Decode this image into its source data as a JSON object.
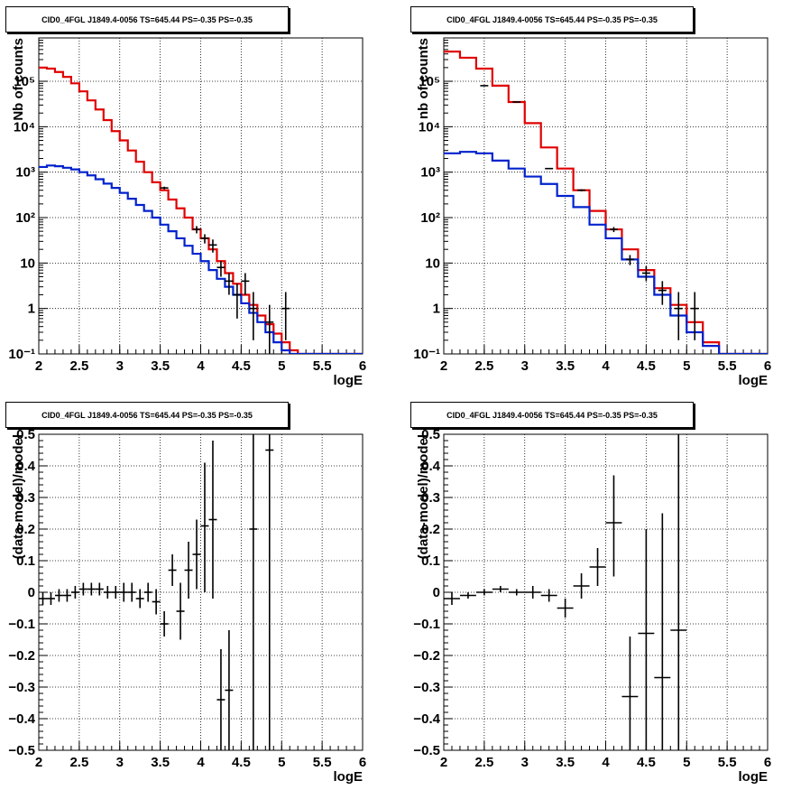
{
  "colors": {
    "data": "#000000",
    "model_total": "#e00000",
    "model_component": "#0022cc",
    "grid": "#000000"
  },
  "chart_data": [
    {
      "type": "line",
      "title": "CID0_4FGL J1849.4-0056 TS=645.44 PS=-0.35 PS=-0.35",
      "xlabel": "logE",
      "ylabel": "Nb of counts",
      "xlim": [
        2,
        6
      ],
      "ylim": [
        0.1,
        900000
      ],
      "yscale": "log",
      "xticks": [
        "2",
        "2.5",
        "3",
        "3.5",
        "4",
        "4.5",
        "5",
        "5.5",
        "6"
      ],
      "yticks": [
        "10⁻¹",
        "1",
        "10",
        "10²",
        "10³",
        "10⁴",
        "10⁵"
      ],
      "grid": true,
      "series": [
        {
          "kind": "step",
          "color": "model_total",
          "edges": [
            2.0,
            2.1,
            2.2,
            2.3,
            2.4,
            2.5,
            2.6,
            2.7,
            2.8,
            2.9,
            3.0,
            3.1,
            3.2,
            3.3,
            3.4,
            3.5,
            3.6,
            3.7,
            3.8,
            3.9,
            4.0,
            4.1,
            4.2,
            4.3,
            4.4,
            4.5,
            4.6,
            4.7,
            4.8,
            4.9,
            5.0,
            5.1,
            5.2,
            5.3,
            5.4,
            5.5,
            5.6,
            5.7,
            5.8,
            5.9,
            6.0
          ],
          "values": [
            200000,
            190000,
            160000,
            125000,
            90000,
            60000,
            38000,
            24000,
            14000,
            8000,
            5000,
            3000,
            1700,
            1000,
            600,
            400,
            250,
            160,
            100,
            55,
            35,
            20,
            11,
            6,
            3.5,
            2.0,
            1.2,
            0.7,
            0.45,
            0.28,
            0.18,
            0.12,
            0.1,
            0.1,
            0.1,
            0.1,
            0.1,
            0.1,
            0.1,
            0.1
          ]
        },
        {
          "kind": "step",
          "color": "model_component",
          "edges": [
            2.0,
            2.1,
            2.2,
            2.3,
            2.4,
            2.5,
            2.6,
            2.7,
            2.8,
            2.9,
            3.0,
            3.1,
            3.2,
            3.3,
            3.4,
            3.5,
            3.6,
            3.7,
            3.8,
            3.9,
            4.0,
            4.1,
            4.2,
            4.3,
            4.4,
            4.5,
            4.6,
            4.7,
            4.8,
            4.9,
            5.0,
            5.1,
            5.2,
            5.3,
            5.4,
            5.5,
            5.6,
            5.7,
            5.8,
            5.9,
            6.0
          ],
          "values": [
            1300,
            1400,
            1350,
            1250,
            1150,
            1000,
            850,
            700,
            560,
            450,
            350,
            260,
            190,
            140,
            100,
            70,
            50,
            35,
            24,
            16,
            11,
            7,
            4.5,
            3.0,
            2.0,
            1.3,
            0.8,
            0.5,
            0.3,
            0.18,
            0.12,
            0.1,
            0.1,
            0.1,
            0.1,
            0.1,
            0.1,
            0.1,
            0.1,
            0.1
          ]
        },
        {
          "kind": "points",
          "color": "data",
          "x": [
            3.55,
            3.95,
            4.05,
            4.15,
            4.25,
            4.35,
            4.45,
            4.55,
            4.65,
            4.85,
            5.05
          ],
          "y": [
            450,
            55,
            35,
            25,
            8,
            4,
            2,
            4,
            1,
            0.5,
            1
          ],
          "ylow": [
            420,
            45,
            27,
            17,
            5,
            2,
            0.6,
            2,
            0.2,
            0.1,
            0.2
          ],
          "yhigh": [
            480,
            65,
            43,
            33,
            11,
            6,
            3.5,
            6,
            2.3,
            1.2,
            2.3
          ]
        }
      ]
    },
    {
      "type": "line",
      "title": "CID0_4FGL J1849.4-0056 TS=645.44 PS=-0.35 PS=-0.35",
      "xlabel": "logE",
      "ylabel": "nb of counts",
      "xlim": [
        2,
        6
      ],
      "ylim": [
        0.1,
        900000
      ],
      "yscale": "log",
      "xticks": [
        "2",
        "2.5",
        "3",
        "3.5",
        "4",
        "4.5",
        "5",
        "5.5",
        "6"
      ],
      "yticks": [
        "10⁻¹",
        "1",
        "10",
        "10²",
        "10³",
        "10⁴",
        "10⁵"
      ],
      "grid": true,
      "series": [
        {
          "kind": "step",
          "color": "model_total",
          "edges": [
            2.0,
            2.2,
            2.4,
            2.6,
            2.8,
            3.0,
            3.2,
            3.4,
            3.6,
            3.8,
            4.0,
            4.2,
            4.4,
            4.6,
            4.8,
            5.0,
            5.2,
            5.4,
            5.6,
            5.8,
            6.0
          ],
          "values": [
            450000,
            330000,
            190000,
            80000,
            35000,
            12000,
            3500,
            1200,
            400,
            140,
            55,
            20,
            7,
            2.8,
            1.2,
            0.5,
            0.18,
            0.1,
            0.1,
            0.1
          ]
        },
        {
          "kind": "step",
          "color": "model_component",
          "edges": [
            2.0,
            2.2,
            2.4,
            2.6,
            2.8,
            3.0,
            3.2,
            3.4,
            3.6,
            3.8,
            4.0,
            4.2,
            4.4,
            4.6,
            4.8,
            5.0,
            5.2,
            5.4,
            5.6,
            5.8,
            6.0
          ],
          "values": [
            2600,
            2800,
            2600,
            1800,
            1200,
            800,
            550,
            300,
            170,
            70,
            35,
            12,
            5,
            2.0,
            0.7,
            0.3,
            0.15,
            0.1,
            0.1,
            0.1
          ]
        },
        {
          "kind": "points",
          "color": "data",
          "x": [
            2.5,
            2.9,
            3.3,
            3.7,
            4.1,
            4.3,
            4.5,
            4.7,
            4.9,
            5.1
          ],
          "y": [
            80000,
            35000,
            1200,
            400,
            55,
            12,
            6,
            2.5,
            1,
            1
          ],
          "ylow": [
            79500,
            34700,
            1170,
            380,
            48,
            9,
            4,
            1.2,
            0.2,
            0.2
          ],
          "yhigh": [
            80500,
            35300,
            1230,
            420,
            62,
            15,
            8.5,
            4,
            2.3,
            2.3
          ]
        }
      ]
    },
    {
      "type": "scatter",
      "title": "CID0_4FGL J1849.4-0056 TS=645.44 PS=-0.35 PS=-0.35",
      "xlabel": "logE",
      "ylabel": "(data-model)/model",
      "xlim": [
        2,
        6
      ],
      "ylim": [
        -0.5,
        0.5
      ],
      "yscale": "linear",
      "xticks": [
        "2",
        "2.5",
        "3",
        "3.5",
        "4",
        "4.5",
        "5",
        "5.5",
        "6"
      ],
      "yticks": [
        "−0.5",
        "−0.4",
        "−0.3",
        "−0.2",
        "−0.1",
        "0",
        "0.1",
        "0.2",
        "0.3",
        "0.4",
        "0.5"
      ],
      "grid": true,
      "series": [
        {
          "kind": "points",
          "color": "data",
          "xerr": 0.05,
          "x": [
            2.05,
            2.15,
            2.25,
            2.35,
            2.45,
            2.55,
            2.65,
            2.75,
            2.85,
            2.95,
            3.05,
            3.15,
            3.25,
            3.35,
            3.45,
            3.55,
            3.65,
            3.75,
            3.85,
            3.95,
            4.05,
            4.15,
            4.25,
            4.35,
            4.65,
            4.85
          ],
          "y": [
            -0.02,
            -0.02,
            -0.01,
            -0.01,
            0.0,
            0.01,
            0.01,
            0.01,
            0.0,
            0.0,
            0.0,
            0.0,
            -0.02,
            0.0,
            -0.03,
            -0.1,
            0.07,
            -0.06,
            0.07,
            0.12,
            0.21,
            0.23,
            -0.34,
            -0.31,
            0.2,
            0.45
          ],
          "ylow": [
            -0.04,
            -0.04,
            -0.03,
            -0.03,
            -0.02,
            -0.01,
            -0.01,
            -0.01,
            -0.02,
            -0.02,
            -0.03,
            -0.03,
            -0.05,
            -0.03,
            -0.07,
            -0.14,
            0.02,
            -0.15,
            -0.02,
            0.01,
            0.0,
            -0.02,
            -0.5,
            -0.5,
            -0.5,
            -0.5
          ],
          "yhigh": [
            0.0,
            0.0,
            0.01,
            0.01,
            0.02,
            0.03,
            0.03,
            0.03,
            0.02,
            0.02,
            0.03,
            0.03,
            0.01,
            0.03,
            0.01,
            -0.06,
            0.12,
            0.03,
            0.16,
            0.23,
            0.41,
            0.48,
            -0.18,
            -0.12,
            0.5,
            0.5
          ]
        }
      ]
    },
    {
      "type": "scatter",
      "title": "CID0_4FGL J1849.4-0056 TS=645.44 PS=-0.35 PS=-0.35",
      "xlabel": "logE",
      "ylabel": "(data-model)/model",
      "xlim": [
        2,
        6
      ],
      "ylim": [
        -0.5,
        0.5
      ],
      "yscale": "linear",
      "xticks": [
        "2",
        "2.5",
        "3",
        "3.5",
        "4",
        "4.5",
        "5",
        "5.5",
        "6"
      ],
      "yticks": [
        "−0.5",
        "−0.4",
        "−0.3",
        "−0.2",
        "−0.1",
        "0",
        "0.1",
        "0.2",
        "0.3",
        "0.4",
        "0.5"
      ],
      "grid": true,
      "series": [
        {
          "kind": "points",
          "color": "data",
          "xerr": 0.1,
          "x": [
            2.1,
            2.3,
            2.5,
            2.7,
            2.9,
            3.1,
            3.3,
            3.5,
            3.7,
            3.9,
            4.1,
            4.3,
            4.5,
            4.7,
            4.9
          ],
          "y": [
            -0.02,
            -0.01,
            0.0,
            0.01,
            0.0,
            0.0,
            -0.01,
            -0.05,
            0.02,
            0.08,
            0.22,
            -0.33,
            -0.13,
            -0.27,
            -0.12
          ],
          "ylow": [
            -0.04,
            -0.02,
            -0.01,
            0.0,
            -0.01,
            -0.02,
            -0.03,
            -0.08,
            -0.02,
            0.02,
            0.05,
            -0.5,
            -0.5,
            -0.5,
            -0.5
          ],
          "yhigh": [
            0.0,
            0.0,
            0.01,
            0.02,
            0.01,
            0.02,
            0.01,
            -0.02,
            0.06,
            0.14,
            0.37,
            -0.14,
            0.2,
            0.25,
            0.5
          ]
        }
      ]
    }
  ]
}
